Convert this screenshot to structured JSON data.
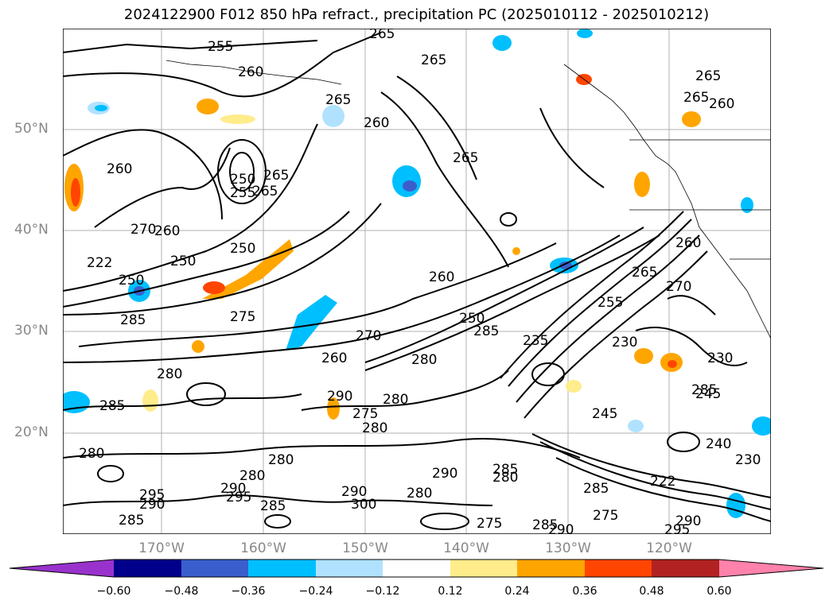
{
  "title": "2024122900 F012 850 hPa refract., precipitation PC (2025010112 - 2025010212)",
  "lat_labels": [
    "50°N",
    "40°N",
    "30°N",
    "20°N"
  ],
  "lon_labels": [
    "170°W",
    "160°W",
    "150°W",
    "140°W",
    "130°W",
    "120°W"
  ],
  "colorbar": {
    "colors": [
      "#9932cc",
      "#00008b",
      "#3a5fcd",
      "#00bfff",
      "#b0e2ff",
      "#ffffff",
      "#ffec8b",
      "#ffa500",
      "#ff4500",
      "#b22222",
      "#ff82ab"
    ],
    "ticks": [
      "−0.60",
      "−0.48",
      "−0.36",
      "−0.24",
      "−0.12",
      "0.12",
      "0.24",
      "0.36",
      "0.48",
      "0.60"
    ]
  },
  "contour_labels": [
    "255",
    "265",
    "265",
    "260",
    "265",
    "260",
    "265",
    "265",
    "260",
    "265",
    "250",
    "255",
    "265",
    "260",
    "270",
    "260",
    "250",
    "250",
    "222",
    "250",
    "260",
    "275",
    "285",
    "270",
    "260",
    "250",
    "285",
    "280",
    "285",
    "230",
    "255",
    "265",
    "270",
    "230",
    "235",
    "245",
    "280",
    "290",
    "275",
    "280",
    "285",
    "280",
    "280",
    "280",
    "290",
    "290",
    "295",
    "285",
    "295",
    "290",
    "285",
    "300",
    "280",
    "275",
    "280",
    "285",
    "290",
    "275",
    "285",
    "290",
    "295",
    "290",
    "285",
    "245",
    "240",
    "230",
    "265",
    "280",
    "222",
    "260"
  ],
  "color_scale": {
    "levels": [
      -0.6,
      -0.48,
      -0.36,
      -0.24,
      -0.12,
      0.12,
      0.24,
      0.36,
      0.48,
      0.6
    ]
  }
}
